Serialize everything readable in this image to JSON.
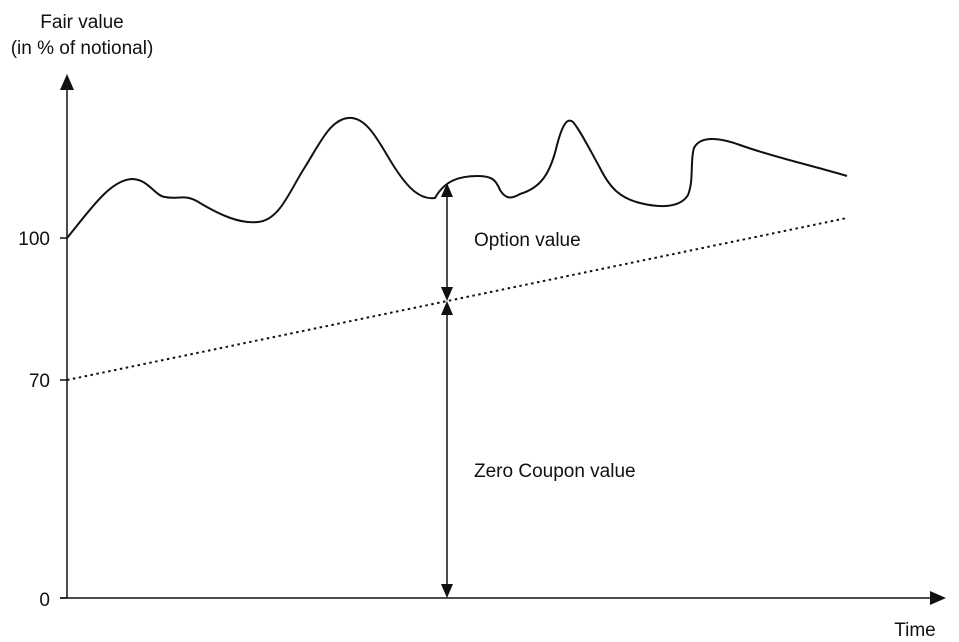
{
  "y_axis": {
    "title_line1": "Fair value",
    "title_line2": "(in % of notional)",
    "ticks": [
      {
        "label": "100",
        "value": 100
      },
      {
        "label": "70",
        "value": 70
      },
      {
        "label": "0",
        "value": 0
      }
    ]
  },
  "x_axis": {
    "title": "Time"
  },
  "annotations": {
    "option_value": "Option value",
    "zero_coupon_value": "Zero Coupon value"
  },
  "curves": {
    "fair_value_style": "solid",
    "zero_coupon_style": "dotted",
    "zero_coupon_start": 70,
    "fair_value_start": 100
  },
  "colors": {
    "ink": "#111111",
    "background": "#ffffff"
  }
}
